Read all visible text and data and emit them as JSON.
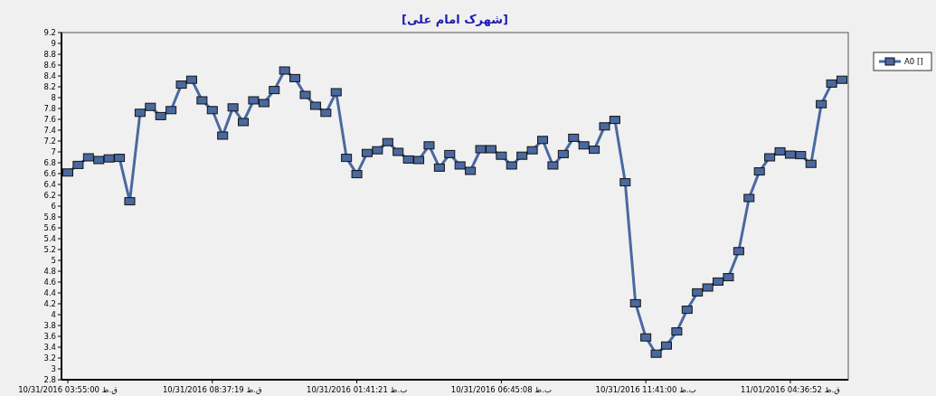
{
  "chart_data": {
    "type": "line",
    "title": "[شهرک امام علی]",
    "categories": [
      "10/31/2016 03:55:00 ق.ظ",
      null,
      null,
      null,
      null,
      null,
      null,
      null,
      null,
      null,
      null,
      null,
      null,
      null,
      "10/31/2016 08:37:19 ق.ظ",
      null,
      null,
      null,
      null,
      null,
      null,
      null,
      null,
      null,
      null,
      null,
      null,
      null,
      "10/31/2016 01:41:21 ب.ظ",
      null,
      null,
      null,
      null,
      null,
      null,
      null,
      null,
      null,
      null,
      null,
      null,
      null,
      "10/31/2016 06:45:08 ب.ظ",
      null,
      null,
      null,
      null,
      null,
      null,
      null,
      null,
      null,
      null,
      null,
      null,
      null,
      "10/31/2016 11:41:00 ب.ظ",
      null,
      null,
      null,
      null,
      null,
      null,
      null,
      null,
      null,
      null,
      null,
      null,
      null,
      "11/01/2016 04:36:52 ق.ظ",
      null,
      null,
      null,
      null,
      null
    ],
    "series": [
      {
        "name": "A0 []",
        "color": "#4a69a0",
        "values": [
          6.62,
          6.76,
          6.9,
          6.85,
          6.88,
          6.89,
          6.09,
          7.72,
          7.83,
          7.66,
          7.77,
          8.24,
          8.33,
          7.95,
          7.77,
          7.3,
          7.82,
          7.55,
          7.95,
          7.9,
          8.14,
          8.5,
          8.36,
          8.05,
          7.85,
          7.72,
          8.1,
          6.89,
          6.59,
          6.98,
          7.03,
          7.18,
          7.0,
          6.86,
          6.85,
          7.12,
          6.71,
          6.96,
          6.75,
          6.65,
          7.05,
          7.05,
          6.93,
          6.75,
          6.93,
          7.03,
          7.22,
          6.75,
          6.96,
          7.26,
          7.12,
          7.04,
          7.47,
          7.59,
          6.44,
          4.21,
          3.58,
          3.28,
          3.43,
          3.69,
          4.09,
          4.41,
          4.5,
          4.61,
          4.69,
          5.17,
          6.15,
          6.64,
          6.9,
          7.01,
          6.95,
          6.94,
          6.78,
          7.88,
          8.26,
          8.33
        ]
      }
    ],
    "ylim": [
      2.8,
      9.2
    ],
    "yticks": [
      2.8,
      3,
      3.2,
      3.4,
      3.6,
      3.8,
      4,
      4.2,
      4.4,
      4.6,
      4.8,
      5,
      5.2,
      5.4,
      5.6,
      5.8,
      6,
      6.2,
      6.4,
      6.6,
      6.8,
      7,
      7.2,
      7.4,
      7.6,
      7.8,
      8,
      8.2,
      8.4,
      8.6,
      8.8,
      9,
      9.2
    ],
    "grid": false,
    "legend": "top right",
    "marker": "square",
    "line_style": "solid"
  }
}
